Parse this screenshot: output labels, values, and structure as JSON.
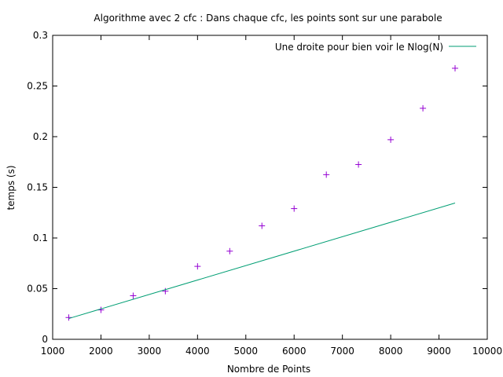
{
  "chart_data": {
    "type": "scatter",
    "title": "Algorithme avec 2 cfc : Dans chaque cfc, les points sont sur une parabole",
    "xlabel": "Nombre de Points",
    "ylabel": "temps (s)",
    "xlim": [
      1000,
      10000
    ],
    "ylim": [
      0,
      0.3
    ],
    "x_ticks": [
      "1000",
      "2000",
      "3000",
      "4000",
      "5000",
      "6000",
      "7000",
      "8000",
      "9000",
      "10000"
    ],
    "y_ticks": [
      "0",
      "0.05",
      "0.1",
      "0.15",
      "0.2",
      "0.25",
      "0.3"
    ],
    "grid": false,
    "legend_position": "top-right",
    "series": [
      {
        "kind": "points",
        "color": "#9400d3",
        "x": [
          1333,
          2000,
          2667,
          3333,
          4000,
          4667,
          5333,
          6000,
          6667,
          7333,
          8000,
          8667,
          9333
        ],
        "y": [
          0.0215,
          0.029,
          0.043,
          0.0475,
          0.072,
          0.087,
          0.112,
          0.129,
          0.1625,
          0.1725,
          0.197,
          0.228,
          0.2675
        ]
      },
      {
        "kind": "line",
        "name": "Une droite pour bien voir le Nlog(N)",
        "color": "#009e73",
        "x": [
          1333,
          9333
        ],
        "y": [
          0.0205,
          0.1345
        ]
      }
    ]
  }
}
